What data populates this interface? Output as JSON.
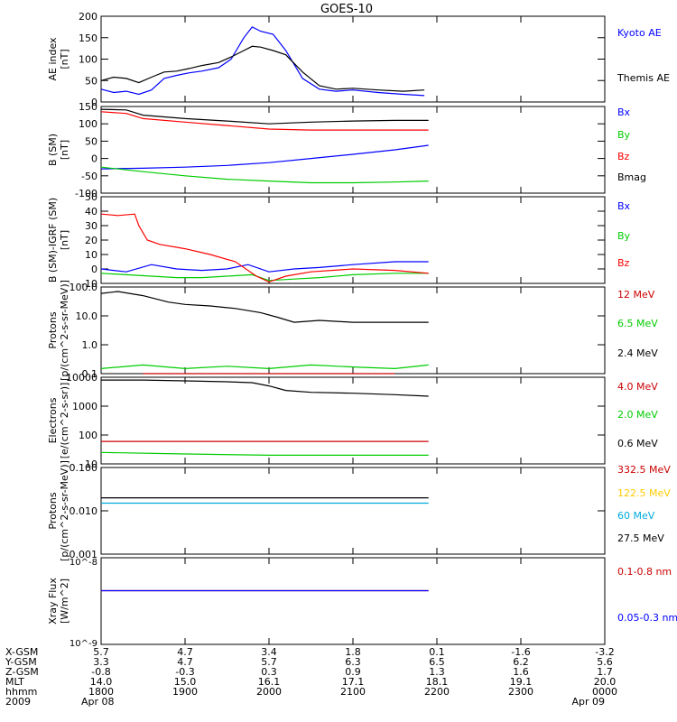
{
  "title": "GOES-10",
  "chart_data": [
    {
      "type": "line",
      "ylabel": "AE index",
      "yunit": "[nT]",
      "ylim": [
        0,
        200
      ],
      "yticks": [
        0,
        50,
        100,
        150,
        200
      ],
      "series": [
        {
          "name": "Kyoto AE",
          "color": "#0000ff",
          "x": [
            0,
            0.15,
            0.3,
            0.45,
            0.6,
            0.75,
            0.9,
            1.05,
            1.2,
            1.4,
            1.55,
            1.7,
            1.8,
            1.9,
            2.05,
            2.2,
            2.4,
            2.6,
            2.8,
            3.0,
            3.3,
            3.6,
            3.85
          ],
          "y": [
            30,
            22,
            25,
            18,
            28,
            55,
            62,
            68,
            72,
            80,
            100,
            150,
            175,
            165,
            158,
            120,
            55,
            30,
            25,
            28,
            22,
            18,
            15
          ]
        },
        {
          "name": "Themis AE",
          "color": "#000000",
          "x": [
            0,
            0.15,
            0.3,
            0.45,
            0.6,
            0.75,
            0.9,
            1.05,
            1.2,
            1.4,
            1.55,
            1.7,
            1.8,
            1.9,
            2.05,
            2.2,
            2.4,
            2.6,
            2.8,
            3.0,
            3.3,
            3.6,
            3.85
          ],
          "y": [
            50,
            58,
            55,
            45,
            58,
            70,
            72,
            78,
            85,
            92,
            105,
            120,
            130,
            128,
            120,
            110,
            70,
            38,
            30,
            32,
            28,
            25,
            28
          ]
        }
      ]
    },
    {
      "type": "line",
      "ylabel": "B (SM)",
      "yunit": "[nT]",
      "ylim": [
        -100,
        150
      ],
      "yticks": [
        -100,
        -50,
        0,
        50,
        100,
        150
      ],
      "series": [
        {
          "name": "Bx",
          "color": "#0000ff",
          "x": [
            0,
            0.5,
            1.0,
            1.5,
            2.0,
            2.5,
            3.0,
            3.5,
            3.9
          ],
          "y": [
            -30,
            -28,
            -25,
            -20,
            -12,
            0,
            12,
            25,
            38
          ]
        },
        {
          "name": "By",
          "color": "#00cc00",
          "x": [
            0,
            0.5,
            1.0,
            1.5,
            2.0,
            2.5,
            3.0,
            3.5,
            3.9
          ],
          "y": [
            -25,
            -38,
            -50,
            -60,
            -65,
            -70,
            -70,
            -68,
            -65
          ]
        },
        {
          "name": "Bz",
          "color": "#ff0000",
          "x": [
            0,
            0.3,
            0.5,
            1.0,
            1.5,
            2.0,
            2.5,
            3.0,
            3.5,
            3.9
          ],
          "y": [
            135,
            130,
            115,
            105,
            95,
            85,
            82,
            82,
            82,
            82
          ]
        },
        {
          "name": "Bmag",
          "color": "#000000",
          "x": [
            0,
            0.3,
            0.5,
            1.0,
            1.5,
            2.0,
            2.5,
            3.0,
            3.5,
            3.9
          ],
          "y": [
            142,
            140,
            125,
            115,
            108,
            100,
            105,
            108,
            110,
            110
          ]
        }
      ]
    },
    {
      "type": "line",
      "ylabel": "B (SM)-IGRF (SM)",
      "yunit": "[nT]",
      "ylim": [
        -10,
        50
      ],
      "yticks": [
        -10,
        0,
        10,
        20,
        30,
        40,
        50
      ],
      "series": [
        {
          "name": "Bx",
          "color": "#0000ff",
          "x": [
            0,
            0.3,
            0.6,
            0.9,
            1.2,
            1.5,
            1.75,
            2.0,
            2.3,
            2.6,
            3.0,
            3.5,
            3.9
          ],
          "y": [
            0,
            -2,
            3,
            0,
            -1,
            0,
            3,
            -2,
            0,
            1,
            3,
            5,
            5
          ]
        },
        {
          "name": "By",
          "color": "#00cc00",
          "x": [
            0,
            0.3,
            0.6,
            0.9,
            1.2,
            1.5,
            1.8,
            2.0,
            2.3,
            2.6,
            3.0,
            3.5,
            3.9
          ],
          "y": [
            -3,
            -4,
            -5,
            -6,
            -6,
            -5,
            -4,
            -8,
            -7,
            -6,
            -4,
            -3,
            -3
          ]
        },
        {
          "name": "Bz",
          "color": "#ff0000",
          "x": [
            0,
            0.2,
            0.4,
            0.45,
            0.55,
            0.7,
            1.0,
            1.3,
            1.6,
            1.85,
            2.0,
            2.2,
            2.5,
            3.0,
            3.5,
            3.9
          ],
          "y": [
            38,
            37,
            38,
            30,
            20,
            17,
            14,
            10,
            5,
            -5,
            -9,
            -5,
            -2,
            0,
            -1,
            -3
          ]
        }
      ]
    },
    {
      "type": "line",
      "yscale": "log",
      "ylabel": "Protons",
      "yunit": "[p/(cm^2-s-sr-MeV)]",
      "ylim": [
        0.1,
        100
      ],
      "yticks": [
        "0.1",
        "1.0",
        "10.0",
        "100.0"
      ],
      "series": [
        {
          "name": "12 MeV",
          "color": "#cc0000",
          "x": [
            0.5,
            1.0,
            1.5,
            2.0,
            2.5,
            3.0,
            3.5
          ],
          "y": [
            0.1,
            0.1,
            0.1,
            0.1,
            0.1,
            0.1,
            0.1
          ]
        },
        {
          "name": "6.5 MeV",
          "color": "#00cc00",
          "x": [
            0,
            0.5,
            1.0,
            1.5,
            2.0,
            2.5,
            3.0,
            3.5,
            3.9
          ],
          "y": [
            0.15,
            0.2,
            0.15,
            0.18,
            0.15,
            0.2,
            0.17,
            0.15,
            0.2
          ]
        },
        {
          "name": "2.4 MeV",
          "color": "#000000",
          "x": [
            0,
            0.2,
            0.5,
            0.8,
            1.0,
            1.3,
            1.6,
            1.9,
            2.1,
            2.3,
            2.6,
            3.0,
            3.4,
            3.9
          ],
          "y": [
            60,
            70,
            50,
            30,
            25,
            22,
            18,
            13,
            9,
            6,
            7,
            6,
            6,
            6
          ]
        }
      ]
    },
    {
      "type": "line",
      "yscale": "log",
      "ylabel": "Electrons",
      "yunit": "[e/(cm^2-s-sr)]",
      "ylim": [
        10,
        10000
      ],
      "yticks": [
        "10",
        "100",
        "1000",
        "10000"
      ],
      "series": [
        {
          "name": "4.0 MeV",
          "color": "#cc0000",
          "x": [
            0,
            1.0,
            2.0,
            3.0,
            3.9
          ],
          "y": [
            60,
            60,
            60,
            60,
            60
          ]
        },
        {
          "name": "2.0 MeV",
          "color": "#00cc00",
          "x": [
            0,
            1.0,
            2.0,
            3.0,
            3.9
          ],
          "y": [
            25,
            22,
            20,
            20,
            20
          ]
        },
        {
          "name": "0.6 MeV",
          "color": "#000000",
          "x": [
            0,
            0.5,
            1.0,
            1.5,
            1.8,
            2.0,
            2.2,
            2.5,
            3.0,
            3.5,
            3.9
          ],
          "y": [
            8000,
            8000,
            7500,
            7000,
            6500,
            5000,
            3500,
            3000,
            2800,
            2500,
            2200
          ]
        }
      ]
    },
    {
      "type": "line",
      "yscale": "log",
      "ylabel": "Protons",
      "yunit": "[p/(cm^2-s-sr-MeV)]",
      "ylim": [
        0.001,
        0.1
      ],
      "yticks": [
        "0.001",
        "0.010",
        "0.100"
      ],
      "series": [
        {
          "name": "332.5 MeV",
          "color": "#cc0000",
          "x": [],
          "y": []
        },
        {
          "name": "122.5 MeV",
          "color": "#ffcc00",
          "x": [],
          "y": []
        },
        {
          "name": "60 MeV",
          "color": "#00aadd",
          "x": [
            0,
            1.0,
            2.0,
            3.0,
            3.9
          ],
          "y": [
            0.015,
            0.015,
            0.015,
            0.015,
            0.015
          ]
        },
        {
          "name": "27.5 MeV",
          "color": "#000000",
          "x": [
            0,
            1.0,
            2.0,
            3.0,
            3.9
          ],
          "y": [
            0.02,
            0.02,
            0.02,
            0.02,
            0.02
          ]
        }
      ]
    },
    {
      "type": "line",
      "yscale": "log",
      "ylabel": "Xray Flux",
      "yunit": "[W/m^2]",
      "ylim": [
        "10^-9",
        "10^-8"
      ],
      "series": [
        {
          "name": "0.1-0.8 nm",
          "color": "#cc0000",
          "x": [
            0,
            3.9
          ],
          "y": [
            0.62,
            0.62
          ]
        },
        {
          "name": "0.05-0.3 nm",
          "color": "#0000ff",
          "x": [
            0,
            3.9
          ],
          "y": [
            0.62,
            0.62
          ]
        }
      ]
    }
  ],
  "ephemeris": {
    "rows": [
      {
        "label": "X-GSM",
        "values": [
          "5.7",
          "4.7",
          "3.4",
          "1.8",
          "0.1",
          "-1.6",
          "-3.2"
        ]
      },
      {
        "label": "Y-GSM",
        "values": [
          "3.3",
          "4.7",
          "5.7",
          "6.3",
          "6.5",
          "6.2",
          "5.6"
        ]
      },
      {
        "label": "Z-GSM",
        "values": [
          "-0.8",
          "-0.3",
          "0.3",
          "0.9",
          "1.3",
          "1.6",
          "1.7"
        ]
      },
      {
        "label": "MLT",
        "values": [
          "14.0",
          "15.0",
          "16.1",
          "17.1",
          "18.1",
          "19.1",
          "20.0"
        ]
      },
      {
        "label": "hhmm",
        "values": [
          "1800",
          "1900",
          "2000",
          "2100",
          "2200",
          "2300",
          "0000"
        ]
      },
      {
        "label": "2009",
        "values": [
          "Apr 08",
          "",
          "",
          "",
          "",
          "",
          "Apr 09"
        ]
      }
    ]
  }
}
